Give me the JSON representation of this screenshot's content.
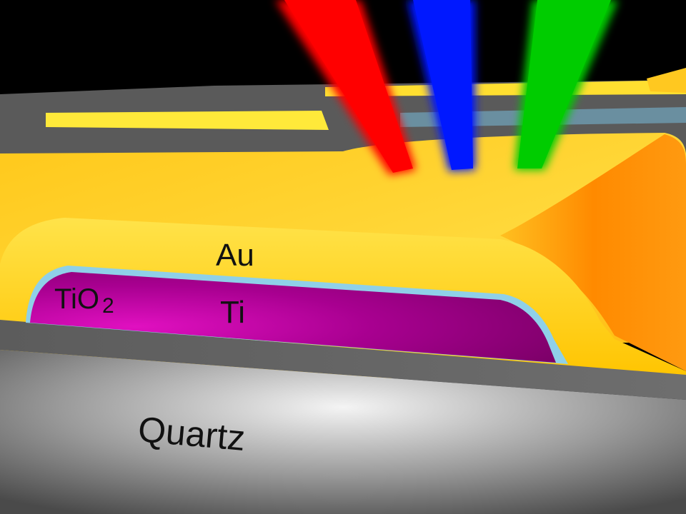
{
  "labels": {
    "au": "Au",
    "tio2_main": "TiO",
    "tio2_subscript": "2",
    "ti": "Ti",
    "quartz": "Quartz"
  },
  "colors": {
    "background": "#000000",
    "gold": "#ffd21a",
    "gold_edge": "#ff8a00",
    "titanium": "#b0007f",
    "oxide_layer": "#7ec8e3",
    "quartz_light": "#f2f2f2",
    "quartz_dark": "#555555",
    "beam_red": "#ff0000",
    "beam_blue": "#0010ff",
    "beam_green": "#00cc00"
  }
}
